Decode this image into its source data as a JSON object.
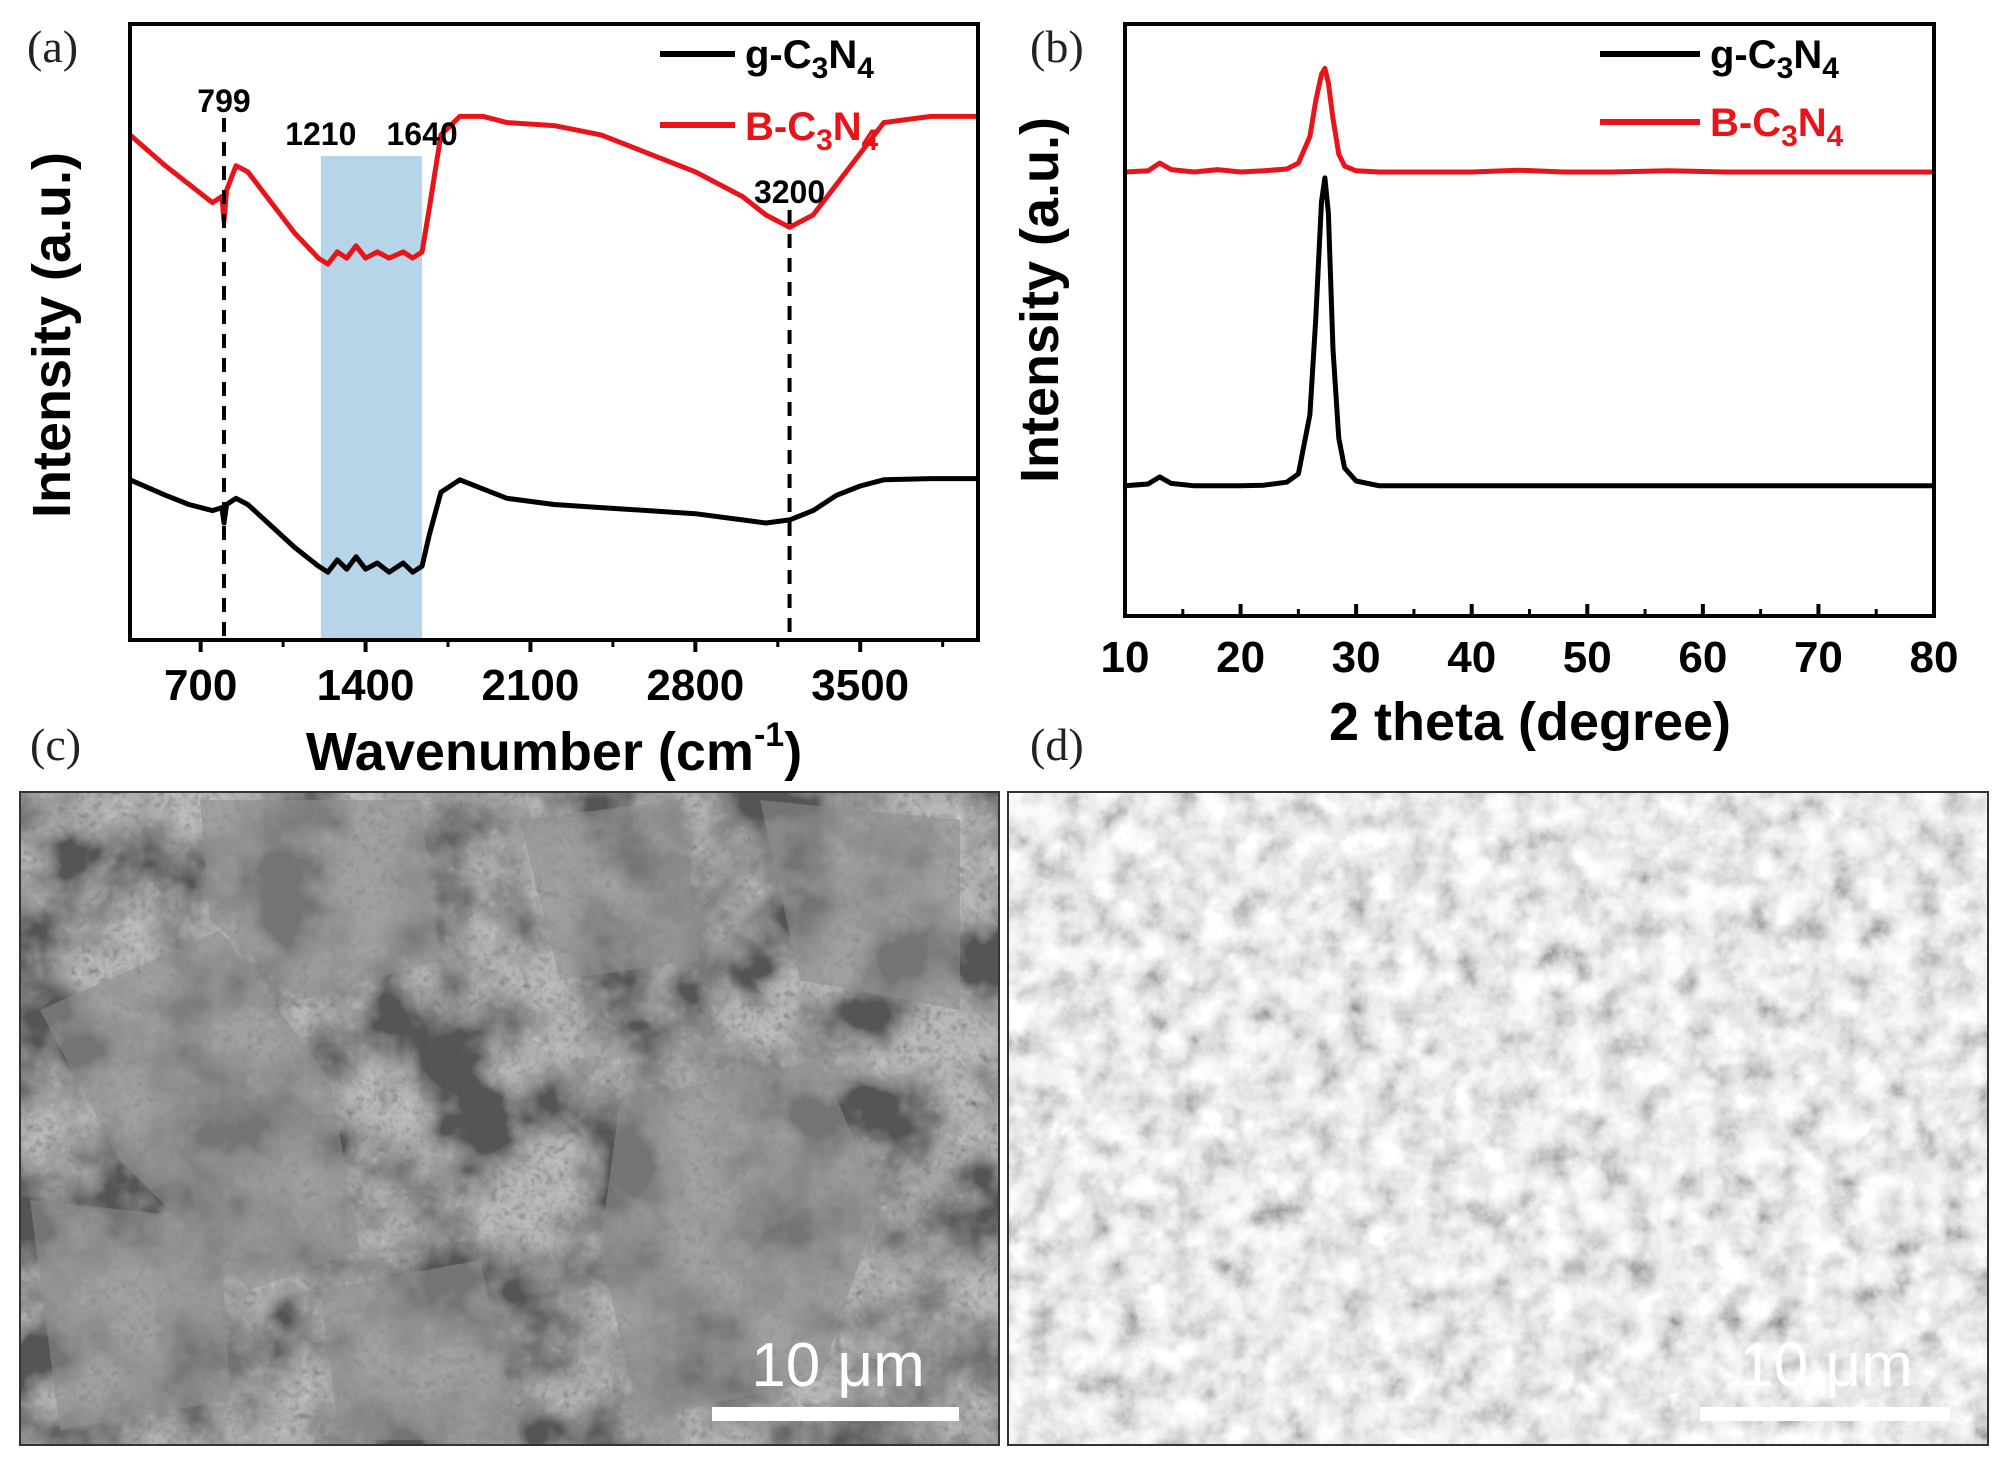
{
  "panels": {
    "a": {
      "tag": "(a)"
    },
    "b": {
      "tag": "(b)"
    },
    "c": {
      "tag": "(c)",
      "scalebar": "10 μm"
    },
    "d": {
      "tag": "(d)",
      "scalebar": "10 μm"
    }
  },
  "colors": {
    "g_C3N4": "#000000",
    "B_C3N4": "#e8141a",
    "band": "#b7d5e8"
  },
  "chart_data": [
    {
      "type": "line",
      "panel": "a",
      "xlabel": "Wavenumber (cm",
      "xlabel_sup": "-1",
      "xlabel_end": ")",
      "ylabel": "Intensity (a.u.)",
      "xlim": [
        400,
        4000
      ],
      "xticks": [
        700,
        1400,
        2100,
        2800,
        3500
      ],
      "xtick_labels": [
        "700",
        "1400",
        "2100",
        "2800",
        "3500"
      ],
      "ylim": [
        0,
        100
      ],
      "grid": false,
      "legend_position": "top-right",
      "legend": [
        {
          "base": "g-C",
          "sub1": "3",
          "mid": "N",
          "sub2": "4"
        },
        {
          "base": "B-C",
          "sub1": "3",
          "mid": "N",
          "sub2": "4"
        }
      ],
      "annotations": [
        {
          "label": "799",
          "x": 799
        },
        {
          "label": "1210",
          "x": 1210
        },
        {
          "label": "1640",
          "x": 1640
        },
        {
          "label": "3200",
          "x": 3200
        }
      ],
      "shaded_region": [
        1210,
        1640
      ],
      "series": [
        {
          "name": "B-C3N4",
          "x": [
            400,
            550,
            650,
            750,
            790,
            799,
            810,
            850,
            900,
            1000,
            1100,
            1200,
            1240,
            1280,
            1320,
            1360,
            1400,
            1450,
            1500,
            1560,
            1600,
            1640,
            1670,
            1720,
            1800,
            1900,
            2000,
            2200,
            2400,
            2600,
            2800,
            3000,
            3100,
            3200,
            3300,
            3400,
            3500,
            3600,
            3800,
            4000
          ],
          "y": [
            82,
            77,
            74,
            71,
            72,
            68,
            73,
            77,
            76,
            71,
            66,
            62,
            61,
            63,
            62,
            64,
            62,
            63,
            62,
            63,
            62,
            63,
            70,
            82,
            85,
            85,
            84,
            83.5,
            82,
            79,
            76,
            72,
            69,
            67,
            69,
            74,
            79,
            84,
            85,
            85
          ]
        },
        {
          "name": "g-C3N4",
          "x": [
            400,
            550,
            650,
            750,
            790,
            799,
            810,
            850,
            900,
            1000,
            1100,
            1200,
            1240,
            1280,
            1320,
            1360,
            1400,
            1450,
            1500,
            1560,
            1600,
            1640,
            1670,
            1720,
            1800,
            1900,
            2000,
            2200,
            2400,
            2600,
            2800,
            3000,
            3100,
            3200,
            3300,
            3400,
            3500,
            3600,
            3800,
            4000
          ],
          "y": [
            26,
            23.5,
            22,
            21,
            21.5,
            19,
            22,
            23,
            22,
            18.5,
            15,
            12,
            11,
            13,
            11.5,
            13.5,
            11.5,
            12.5,
            11,
            12.5,
            11,
            12,
            17,
            24,
            26,
            24.5,
            23,
            22,
            21.5,
            21,
            20.5,
            19.5,
            19,
            19.5,
            21,
            23.5,
            25,
            26,
            26.2,
            26.2
          ]
        }
      ]
    },
    {
      "type": "line",
      "panel": "b",
      "xlabel": "2 theta (degree)",
      "ylabel": "Intensity (a.u.)",
      "xlim": [
        10,
        80
      ],
      "xticks": [
        10,
        20,
        30,
        40,
        50,
        60,
        70,
        80
      ],
      "xtick_labels": [
        "10",
        "20",
        "30",
        "40",
        "50",
        "60",
        "70",
        "80"
      ],
      "ylim": [
        0,
        100
      ],
      "grid": false,
      "legend_position": "top-right",
      "legend": [
        {
          "base": "g-C",
          "sub1": "3",
          "mid": "N",
          "sub2": "4"
        },
        {
          "base": "B-C",
          "sub1": "3",
          "mid": "N",
          "sub2": "4"
        }
      ],
      "series": [
        {
          "name": "B-C3N4",
          "x": [
            10,
            12,
            13,
            14,
            16,
            18,
            20,
            22,
            24,
            25,
            26,
            26.5,
            27,
            27.3,
            27.6,
            28,
            28.5,
            29,
            30,
            32,
            35,
            40,
            44,
            48,
            52,
            57,
            62,
            70,
            80
          ],
          "y": [
            75,
            75.2,
            76.5,
            75.4,
            75,
            75.4,
            75,
            75.2,
            75.5,
            76.5,
            81,
            87,
            91.5,
            92.5,
            90,
            84,
            78,
            76,
            75.2,
            75,
            75,
            75,
            75.3,
            75,
            75,
            75.2,
            75,
            75,
            75
          ]
        },
        {
          "name": "g-C3N4",
          "x": [
            10,
            12,
            13,
            14,
            16,
            20,
            22,
            24,
            25,
            26,
            26.5,
            27,
            27.3,
            27.6,
            28,
            28.5,
            29,
            30,
            32,
            40,
            50,
            60,
            70,
            80
          ],
          "y": [
            22,
            22.3,
            23.5,
            22.4,
            22,
            22,
            22.1,
            22.6,
            24,
            34,
            50,
            70,
            74,
            68,
            45,
            30,
            25,
            22.8,
            22,
            22,
            22,
            22,
            22,
            22
          ]
        }
      ]
    }
  ]
}
